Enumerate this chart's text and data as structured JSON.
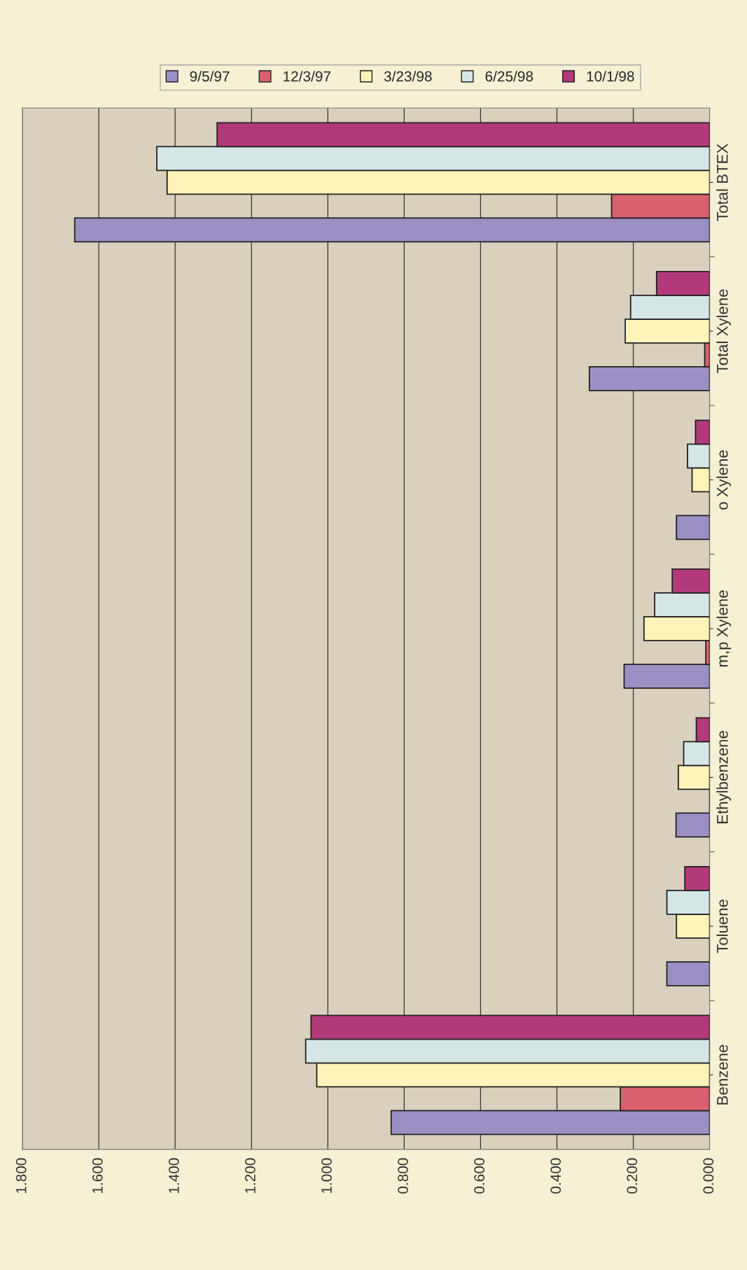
{
  "chart_data": {
    "type": "bar",
    "orientation": "horizontal",
    "categories": [
      "Total BTEX",
      "Total Xylene",
      "o Xylene",
      "m,p Xylene",
      "Ethylbenzene",
      "Toluene",
      "Benzene"
    ],
    "series": [
      {
        "name": "9/5/97",
        "color": "#9c8fc4",
        "values": [
          1.663,
          0.315,
          0.087,
          0.224,
          0.088,
          0.112,
          0.834
        ]
      },
      {
        "name": "12/3/97",
        "color": "#d9606e",
        "values": [
          0.257,
          0.013,
          null,
          0.01,
          null,
          null,
          0.234
        ]
      },
      {
        "name": "3/23/98",
        "color": "#fff3b8",
        "values": [
          1.421,
          0.221,
          0.046,
          0.172,
          0.082,
          0.087,
          1.029
        ]
      },
      {
        "name": "6/25/98",
        "color": "#d5e6e6",
        "values": [
          1.448,
          0.207,
          0.058,
          0.144,
          0.068,
          0.112,
          1.058
        ]
      },
      {
        "name": "10/1/98",
        "color": "#b23a7a",
        "values": [
          1.29,
          0.139,
          0.037,
          0.098,
          0.035,
          0.065,
          1.044
        ]
      }
    ],
    "xlim": [
      1.8,
      0
    ],
    "xticks": [
      {
        "value": 1.8,
        "label": "1.800"
      },
      {
        "value": 1.6,
        "label": "1.600"
      },
      {
        "value": 1.4,
        "label": "1.400"
      },
      {
        "value": 1.2,
        "label": "1.200"
      },
      {
        "value": 1.0,
        "label": "1.000"
      },
      {
        "value": 0.8,
        "label": "0.800"
      },
      {
        "value": 0.6,
        "label": "0.600"
      },
      {
        "value": 0.4,
        "label": "0.400"
      },
      {
        "value": 0.2,
        "label": "0.200"
      },
      {
        "value": 0,
        "label": "0.000"
      }
    ],
    "grid": "x",
    "legend": "top"
  }
}
